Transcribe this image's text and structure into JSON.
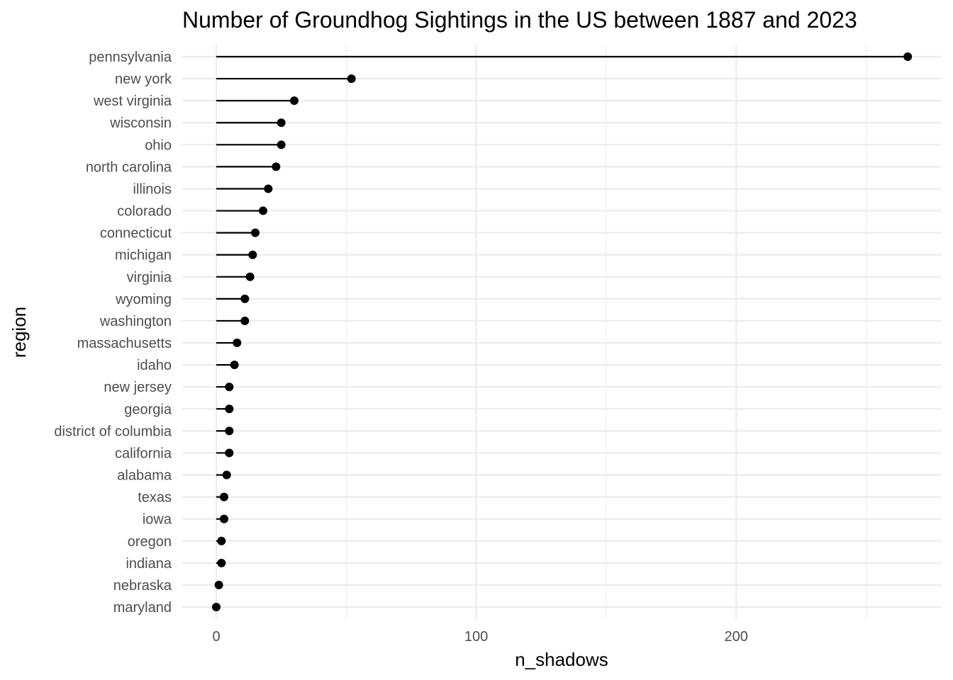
{
  "chart_data": {
    "type": "lollipop",
    "title": "Number of Groundhog Sightings in the US between 1887 and 2023",
    "xlabel": "n_shadows",
    "ylabel": "region",
    "xlim": [
      -13,
      279
    ],
    "x_ticks": [
      0,
      100,
      200
    ],
    "x_tick_labels": [
      "0",
      "100",
      "200"
    ],
    "x_minor_ticks": [
      50,
      150,
      250
    ],
    "grid": true,
    "legend": "none",
    "categories": [
      "pennsylvania",
      "new york",
      "west virginia",
      "wisconsin",
      "ohio",
      "north carolina",
      "illinois",
      "colorado",
      "connecticut",
      "michigan",
      "virginia",
      "wyoming",
      "washington",
      "massachusetts",
      "idaho",
      "new jersey",
      "georgia",
      "district of columbia",
      "california",
      "alabama",
      "texas",
      "iowa",
      "oregon",
      "indiana",
      "nebraska",
      "maryland"
    ],
    "values": [
      266,
      52,
      30,
      25,
      25,
      23,
      20,
      18,
      15,
      14,
      13,
      11,
      11,
      8,
      7,
      5,
      5,
      5,
      5,
      4,
      3,
      3,
      2,
      2,
      1,
      0
    ],
    "colors": {
      "mark": "#000000",
      "grid": "#ebebeb",
      "tick_text": "#4d4d4d",
      "title_text": "#000000"
    }
  }
}
